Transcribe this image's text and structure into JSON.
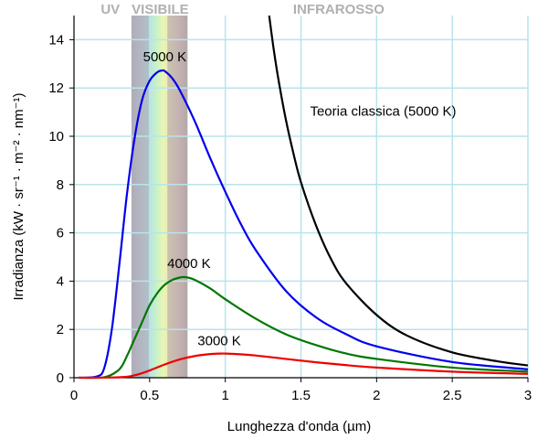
{
  "chart_data": {
    "type": "line",
    "xlabel": "Lunghezza d'onda (µm)",
    "ylabel": "Irradianza (kW · sr⁻¹ · m⁻² · nm⁻¹)",
    "xlim": [
      0,
      3
    ],
    "ylim": [
      0,
      15
    ],
    "x_ticks": [
      0,
      0.5,
      1,
      1.5,
      2,
      2.5,
      3
    ],
    "x_tick_labels": [
      "0",
      "0.5",
      "1",
      "1.5",
      "2",
      "2.5",
      "3"
    ],
    "y_ticks": [
      0,
      2,
      4,
      6,
      8,
      10,
      12,
      14
    ],
    "y_tick_labels": [
      "0",
      "2",
      "4",
      "6",
      "8",
      "10",
      "12",
      "14"
    ],
    "grid": true,
    "bands": [
      {
        "label": "UV",
        "range": [
          0,
          0.38
        ]
      },
      {
        "label": "VISIBILE",
        "range": [
          0.38,
          0.75
        ]
      },
      {
        "label": "INFRAROSSO",
        "range": [
          0.75,
          3
        ]
      }
    ],
    "series": [
      {
        "name": "5000 K",
        "color": "#0000ee",
        "x": [
          0.15,
          0.2,
          0.25,
          0.3,
          0.35,
          0.4,
          0.45,
          0.5,
          0.55,
          0.58,
          0.6,
          0.65,
          0.7,
          0.8,
          0.9,
          1.0,
          1.1,
          1.2,
          1.4,
          1.6,
          1.8,
          2.0,
          2.5,
          3.0
        ],
        "y": [
          0.05,
          0.4,
          2.0,
          4.7,
          7.6,
          9.9,
          11.5,
          12.3,
          12.65,
          12.72,
          12.7,
          12.4,
          11.9,
          10.6,
          9.1,
          7.7,
          6.4,
          5.3,
          3.6,
          2.5,
          1.8,
          1.3,
          0.65,
          0.35
        ]
      },
      {
        "name": "4000 K",
        "color": "#007700",
        "x": [
          0.2,
          0.3,
          0.35,
          0.4,
          0.45,
          0.5,
          0.55,
          0.6,
          0.65,
          0.7,
          0.725,
          0.75,
          0.8,
          0.9,
          1.0,
          1.2,
          1.4,
          1.6,
          1.8,
          2.0,
          2.5,
          3.0
        ],
        "y": [
          0.02,
          0.35,
          0.9,
          1.6,
          2.3,
          3.0,
          3.5,
          3.85,
          4.05,
          4.15,
          4.17,
          4.15,
          4.05,
          3.7,
          3.25,
          2.45,
          1.8,
          1.35,
          1.0,
          0.78,
          0.42,
          0.25
        ]
      },
      {
        "name": "3000 K",
        "color": "#ee0000",
        "x": [
          0.3,
          0.4,
          0.5,
          0.6,
          0.7,
          0.8,
          0.9,
          0.97,
          1.0,
          1.1,
          1.2,
          1.4,
          1.6,
          1.8,
          2.0,
          2.5,
          3.0
        ],
        "y": [
          0.02,
          0.1,
          0.3,
          0.55,
          0.76,
          0.9,
          0.98,
          1.0,
          1.0,
          0.97,
          0.92,
          0.78,
          0.64,
          0.52,
          0.42,
          0.25,
          0.16
        ]
      },
      {
        "name": "Teoria classica (5000 K)",
        "color": "#000000",
        "x": [
          1.29,
          1.32,
          1.35,
          1.4,
          1.45,
          1.5,
          1.6,
          1.7,
          1.8,
          2.0,
          2.2,
          2.5,
          2.8,
          3.0
        ],
        "y": [
          15.0,
          13.6,
          12.4,
          10.7,
          9.3,
          8.1,
          6.3,
          4.9,
          3.9,
          2.6,
          1.75,
          1.05,
          0.68,
          0.51
        ]
      }
    ],
    "annotations": [
      {
        "text": "5000 K",
        "x": 0.6,
        "y": 13.1
      },
      {
        "text": "4000 K",
        "x": 0.76,
        "y": 4.55
      },
      {
        "text": "3000 K",
        "x": 0.96,
        "y": 1.35
      },
      {
        "text": "Teoria classica (5000 K)",
        "x": 1.56,
        "y": 10.85
      }
    ]
  }
}
